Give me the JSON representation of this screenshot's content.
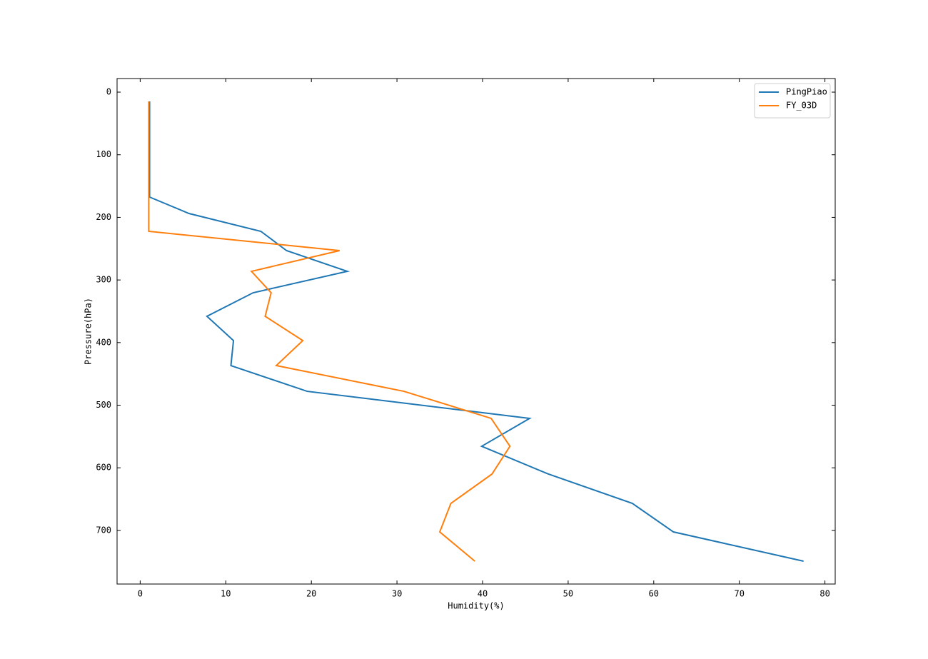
{
  "chart_data": {
    "type": "line",
    "x_label": "Humidity(%)",
    "y_label": "Pressure(hPa)",
    "series": [
      {
        "name": "PingPiao",
        "color": "#1f77b4",
        "x": [
          1.1,
          1.1,
          5.7,
          14.1,
          17.1,
          24.2,
          13.2,
          7.8,
          10.9,
          10.6,
          19.5,
          45.5,
          39.9,
          47.7,
          57.5,
          62.3,
          77.5
        ],
        "values": [
          14.8,
          167.6,
          193.8,
          222.3,
          253.1,
          286.2,
          320.4,
          358,
          396.8,
          436.7,
          477.8,
          521,
          565.6,
          610,
          656.8,
          702.4,
          749.1
        ]
      },
      {
        "name": "FY_03D",
        "color": "#ff7f0e",
        "x": [
          1.0,
          1.0,
          23.3,
          13.0,
          15.3,
          14.6,
          19.0,
          15.9,
          30.8,
          41.0,
          43.2,
          41.1,
          36.3,
          35.0,
          39.1
        ],
        "values": [
          14.8,
          222.3,
          253.1,
          286.2,
          320.4,
          358,
          396.8,
          436.7,
          477.8,
          521,
          565.6,
          610,
          656.8,
          702.4,
          749.1
        ]
      }
    ],
    "xlim": [
      -2.7,
      81.2
    ],
    "xticks": [
      0,
      10,
      20,
      30,
      40,
      50,
      60,
      70,
      80
    ],
    "ylim": [
      -21.7,
      785.6
    ],
    "yticks": [
      0,
      100,
      200,
      300,
      400,
      500,
      600,
      700
    ],
    "y_inverted": true,
    "grid": false,
    "legend": "upper right"
  }
}
